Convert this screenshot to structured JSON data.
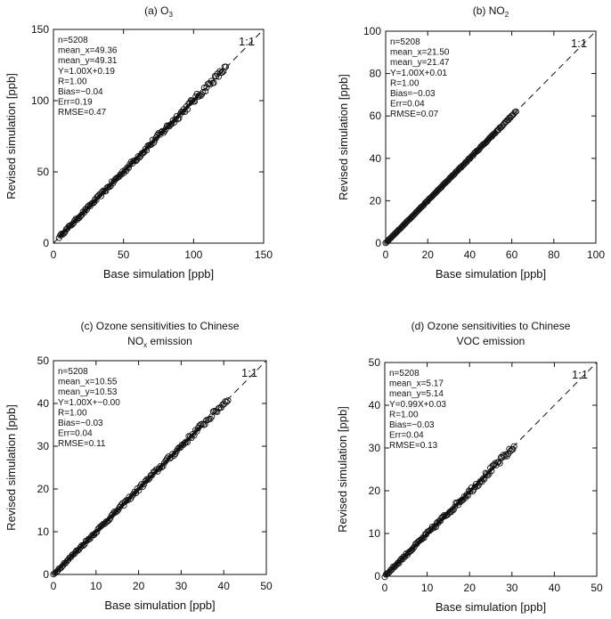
{
  "figure": {
    "subscript_o3": "3",
    "subscript_no2": "2",
    "subscript_nox": "x"
  },
  "chart_data": [
    {
      "type": "scatter",
      "title": "(a) O₃",
      "title_main": "(a) O",
      "title_sub": "3",
      "xlabel": "Base simulation [ppb]",
      "ylabel": "Revised simulation [ppb]",
      "xlim": [
        0,
        150
      ],
      "ylim": [
        0,
        150
      ],
      "xticks": [
        0,
        50,
        100,
        150
      ],
      "yticks": [
        0,
        50,
        100,
        150
      ],
      "one_to_one_label": "1:1",
      "stats": [
        "n=5208",
        "mean_x=49.36",
        "mean_y=49.31",
        "Y=1.00X+0.19",
        "R=1.00",
        "Bias=−0.04",
        "Err=0.19",
        "RMSE=0.47"
      ],
      "slope": 1.0,
      "intercept": 0.19,
      "x_range": [
        4,
        123
      ],
      "spread": 2.2,
      "n_markers": 140
    },
    {
      "type": "scatter",
      "title": "(b) NO₂",
      "title_main": "(b) NO",
      "title_sub": "2",
      "xlabel": "Base simulation [ppb]",
      "ylabel": "Revised simulation [ppb]",
      "xlim": [
        0,
        100
      ],
      "ylim": [
        0,
        100
      ],
      "xticks": [
        0,
        20,
        40,
        60,
        80,
        100
      ],
      "yticks": [
        0,
        20,
        40,
        60,
        80,
        100
      ],
      "one_to_one_label": "1:1",
      "stats": [
        "n=5208",
        "mean_x=21.50",
        "mean_y=21.47",
        "Y=1.00X+0.01",
        "R=1.00",
        "Bias=−0.03",
        "Err=0.04",
        "RMSE=0.07"
      ],
      "slope": 1.0,
      "intercept": 0.01,
      "x_range": [
        0,
        62
      ],
      "spread": 0.3,
      "n_markers": 120
    },
    {
      "type": "scatter",
      "title": "(c) Ozone sensitivities to Chinese NOₓ emission",
      "title_line1": "(c) Ozone sensitivities to Chinese",
      "title_line2_main": "NO",
      "title_line2_sub": "x",
      "title_line2_rest": " emission",
      "xlabel": "Base simulation [ppb]",
      "ylabel": "Revised simulation [ppb]",
      "xlim": [
        0,
        50
      ],
      "ylim": [
        0,
        50
      ],
      "xticks": [
        0,
        10,
        20,
        30,
        40,
        50
      ],
      "yticks": [
        0,
        10,
        20,
        30,
        40,
        50
      ],
      "one_to_one_label": "1:1",
      "stats": [
        "n=5208",
        "mean_x=10.55",
        "mean_y=10.53",
        "Y=1.00X+−0.00",
        "R=1.00",
        "Bias=−0.03",
        "Err=0.04",
        "RMSE=0.11"
      ],
      "slope": 1.0,
      "intercept": 0.0,
      "x_range": [
        0,
        41
      ],
      "spread": 0.6,
      "n_markers": 130
    },
    {
      "type": "scatter",
      "title": "(d) Ozone sensitivities to Chinese VOC emission",
      "title_line1": "(d) Ozone sensitivities to Chinese",
      "title_line2_main": "VOC emission",
      "title_line2_sub": "",
      "title_line2_rest": "",
      "xlabel": "Base simulation [ppb]",
      "ylabel": "Revised simulation [ppb]",
      "xlim": [
        0,
        50
      ],
      "ylim": [
        0,
        50
      ],
      "xticks": [
        0,
        10,
        20,
        30,
        40,
        50
      ],
      "yticks": [
        0,
        10,
        20,
        30,
        40,
        50
      ],
      "one_to_one_label": "1:1",
      "stats": [
        "n=5208",
        "mean_x=5.17",
        "mean_y=5.14",
        "Y=0.99X+0.03",
        "R=1.00",
        "Bias=−0.03",
        "Err=0.04",
        "RMSE=0.13"
      ],
      "slope": 0.99,
      "intercept": 0.03,
      "x_range": [
        0,
        30.5
      ],
      "spread": 0.7,
      "n_markers": 110
    }
  ]
}
